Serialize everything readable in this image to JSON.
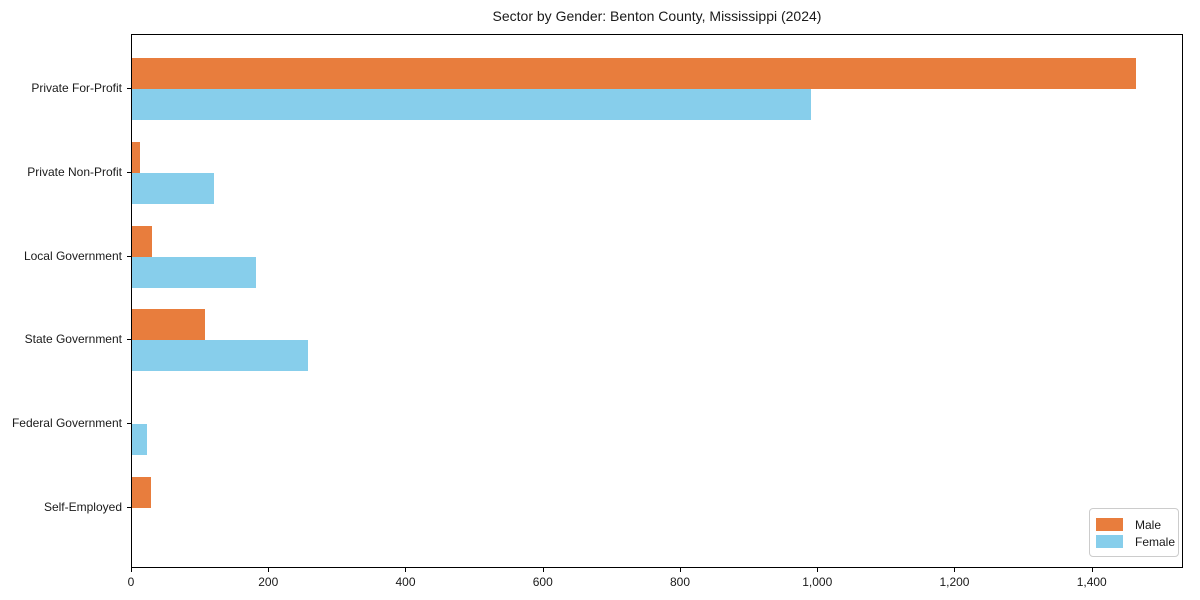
{
  "title": "Sector by Gender: Benton County, Mississippi (2024)",
  "chart_data": {
    "type": "bar",
    "orientation": "horizontal",
    "title": "Sector by Gender: Benton County, Mississippi (2024)",
    "categories": [
      "Private For-Profit",
      "Private Non-Profit",
      "Local Government",
      "State Government",
      "Federal Government",
      "Self-Employed"
    ],
    "series": [
      {
        "name": "Male",
        "color": "#e87d3d",
        "values": [
          1463,
          11,
          29,
          106,
          0,
          28
        ]
      },
      {
        "name": "Female",
        "color": "#87ceeb",
        "values": [
          990,
          120,
          180,
          257,
          22,
          0
        ]
      }
    ],
    "xlabel": "",
    "ylabel": "",
    "xlim": [
      0,
      1533
    ],
    "xticks": [
      0,
      200,
      400,
      600,
      800,
      1000,
      1200,
      1400
    ],
    "xtick_labels": [
      "0",
      "200",
      "400",
      "600",
      "800",
      "1,000",
      "1,200",
      "1,400"
    ],
    "grid": false,
    "legend_position": "lower right"
  }
}
